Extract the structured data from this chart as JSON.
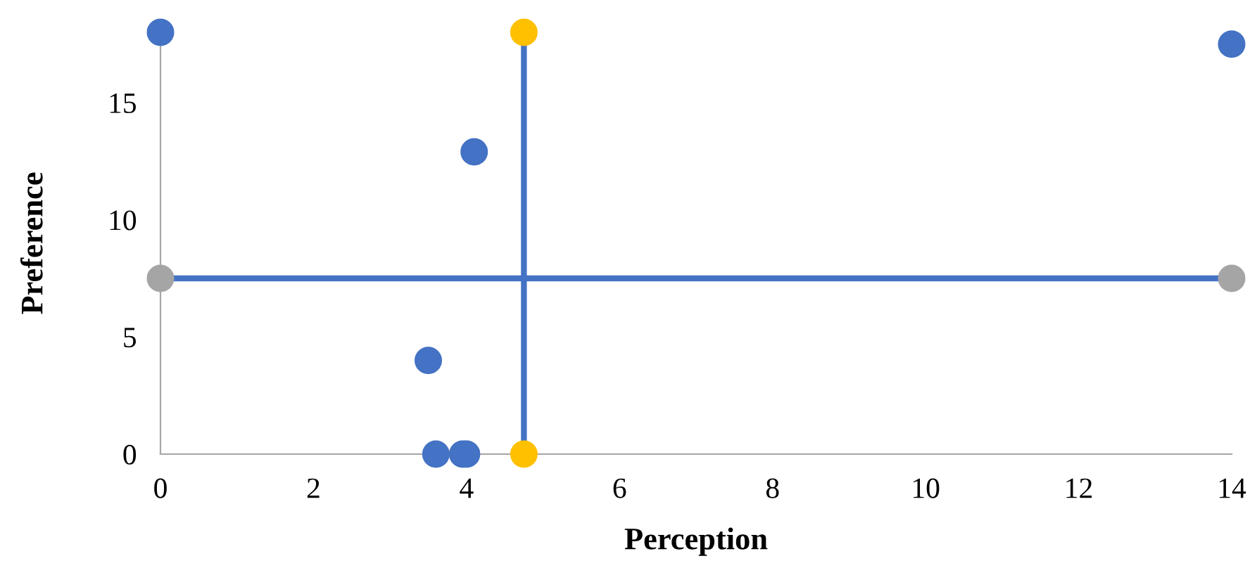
{
  "chart_data": {
    "type": "scatter",
    "xlabel": "Perception",
    "ylabel": "Preference",
    "xlim": [
      0,
      14
    ],
    "ylim": [
      0,
      18
    ],
    "xticks": [
      0,
      2,
      4,
      6,
      8,
      10,
      12,
      14
    ],
    "yticks": [
      0,
      5,
      10,
      15
    ],
    "grid": false,
    "legend": false,
    "marker": "circle",
    "series": [
      {
        "color": "#4472c4",
        "x": [
          0,
          4.1,
          3.5,
          3.6,
          3.95,
          4.0,
          14
        ],
        "values": [
          18,
          12.9,
          4,
          0,
          0,
          0,
          17.5
        ]
      },
      {
        "type": "line",
        "color": "#4472c4",
        "colors": [
          "#ffc000",
          "#ffc000"
        ],
        "x": [
          4.75,
          4.75
        ],
        "values": [
          0,
          18
        ]
      },
      {
        "type": "line",
        "color": "#4472c4",
        "colors": [
          "#a5a5a5",
          "#a5a5a5"
        ],
        "x": [
          0,
          14
        ],
        "values": [
          7.5,
          7.5
        ]
      }
    ]
  }
}
